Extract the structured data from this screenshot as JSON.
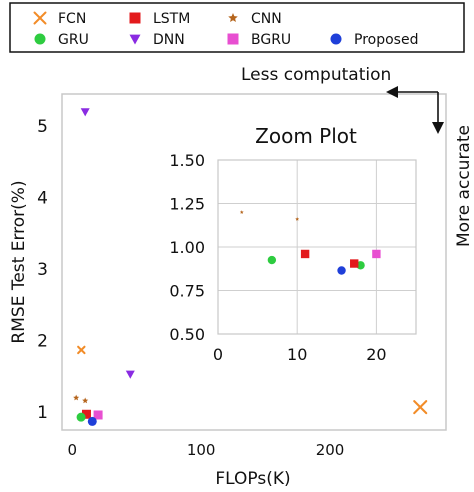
{
  "chart_data": [
    {
      "type": "scatter",
      "title": "",
      "xlabel": "FLOPs(K)",
      "ylabel": "RMSE Test Error(%)",
      "xlim": [
        -8,
        290
      ],
      "ylim": [
        0.75,
        5.45
      ],
      "xticks": [
        0,
        100,
        200
      ],
      "yticks": [
        1,
        2,
        3,
        4,
        5
      ],
      "grid": false,
      "legend_position": "top (boxed, above plot)",
      "series": [
        {
          "name": "FCN",
          "marker": "x",
          "color": "#f28c28",
          "points": [
            [
              7,
              1.87
            ],
            [
              270,
              1.07
            ]
          ],
          "sizes": [
            6,
            14
          ]
        },
        {
          "name": "LSTM",
          "marker": "square",
          "color": "#e31a1c",
          "points": [
            [
              11,
              0.97
            ]
          ]
        },
        {
          "name": "CNN",
          "marker": "star",
          "color": "#b5651d",
          "points": [
            [
              3,
              1.2
            ],
            [
              10,
              1.16
            ]
          ]
        },
        {
          "name": "GRU",
          "marker": "circle",
          "color": "#2ecc40",
          "points": [
            [
              6.8,
              0.93
            ]
          ]
        },
        {
          "name": "DNN",
          "marker": "triangle-down",
          "color": "#8a2be2",
          "points": [
            [
              10,
              5.2
            ],
            [
              45,
              1.53
            ]
          ]
        },
        {
          "name": "BGRU",
          "marker": "square",
          "color": "#e84fd1",
          "points": [
            [
              20,
              0.96
            ]
          ]
        },
        {
          "name": "Proposed",
          "marker": "circle",
          "color": "#1f3fd9",
          "points": [
            [
              15.5,
              0.87
            ]
          ]
        }
      ],
      "annotations": {
        "top_arrow_label": "Less computation",
        "side_arrow_label": "More accurate"
      }
    },
    {
      "type": "scatter",
      "title": "Zoom Plot",
      "xlabel": "",
      "ylabel": "",
      "xlim": [
        0,
        25
      ],
      "ylim": [
        0.5,
        1.5
      ],
      "xticks": [
        0,
        10,
        20
      ],
      "yticks": [
        "0.50",
        "0.75",
        "1.00",
        "1.25",
        "1.50"
      ],
      "grid": true,
      "series": [
        {
          "name": "CNN",
          "marker": "star",
          "color": "#b5651d",
          "points": [
            [
              3,
              1.2
            ],
            [
              10,
              1.16
            ]
          ]
        },
        {
          "name": "GRU",
          "marker": "circle",
          "color": "#2ecc40",
          "points": [
            [
              6.8,
              0.925
            ],
            [
              18,
              0.895
            ]
          ]
        },
        {
          "name": "LSTM",
          "marker": "square",
          "color": "#e31a1c",
          "points": [
            [
              11,
              0.96
            ],
            [
              17.2,
              0.905
            ]
          ]
        },
        {
          "name": "BGRU",
          "marker": "square",
          "color": "#e84fd1",
          "points": [
            [
              20,
              0.96
            ]
          ]
        },
        {
          "name": "Proposed",
          "marker": "circle",
          "color": "#1f3fd9",
          "points": [
            [
              15.6,
              0.865
            ]
          ]
        }
      ]
    }
  ]
}
